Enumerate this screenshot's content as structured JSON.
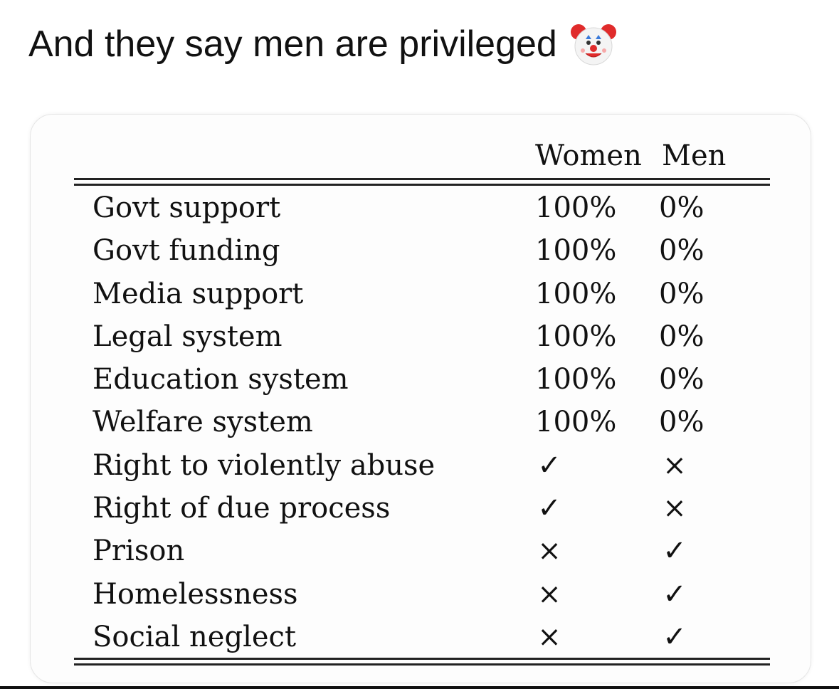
{
  "post": {
    "title": "And they say men are privileged",
    "emoji_icon": "clown-face-icon"
  },
  "table": {
    "columns": [
      "Women",
      "Men"
    ],
    "rows": [
      {
        "label": "Govt support",
        "women": "100%",
        "men": "0%"
      },
      {
        "label": "Govt funding",
        "women": "100%",
        "men": "0%"
      },
      {
        "label": "Media support",
        "women": "100%",
        "men": "0%"
      },
      {
        "label": "Legal system",
        "women": "100%",
        "men": "0%"
      },
      {
        "label": "Education system",
        "women": "100%",
        "men": "0%"
      },
      {
        "label": "Welfare system",
        "women": "100%",
        "men": "0%"
      },
      {
        "label": "Right to violently abuse",
        "women": "✓",
        "men": "×"
      },
      {
        "label": "Right of due process",
        "women": "✓",
        "men": "×"
      },
      {
        "label": "Prison",
        "women": "×",
        "men": "✓"
      },
      {
        "label": "Homelessness",
        "women": "×",
        "men": "✓"
      },
      {
        "label": "Social neglect",
        "women": "×",
        "men": "✓"
      }
    ]
  },
  "colors": {
    "text": "#111111",
    "card_background": "#fdfdfd",
    "clown_face": "#f4f4f4",
    "clown_hair": "#e02b2b",
    "clown_nose": "#e02b2b"
  }
}
